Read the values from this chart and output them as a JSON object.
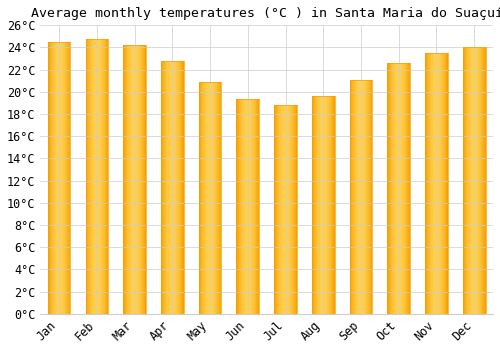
{
  "title": "Average monthly temperatures (°C ) in Santa Maria do Suaçuí",
  "months": [
    "Jan",
    "Feb",
    "Mar",
    "Apr",
    "May",
    "Jun",
    "Jul",
    "Aug",
    "Sep",
    "Oct",
    "Nov",
    "Dec"
  ],
  "values": [
    24.5,
    24.8,
    24.2,
    22.8,
    20.9,
    19.4,
    18.8,
    19.6,
    21.1,
    22.6,
    23.5,
    24.0
  ],
  "bar_color_center": "#FFD050",
  "bar_color_edge": "#F5A000",
  "ylim": [
    0,
    26
  ],
  "ytick_step": 2,
  "background_color": "#ffffff",
  "grid_color": "#cccccc",
  "title_fontsize": 9.5,
  "tick_fontsize": 8.5,
  "font_family": "monospace",
  "bar_width": 0.6
}
